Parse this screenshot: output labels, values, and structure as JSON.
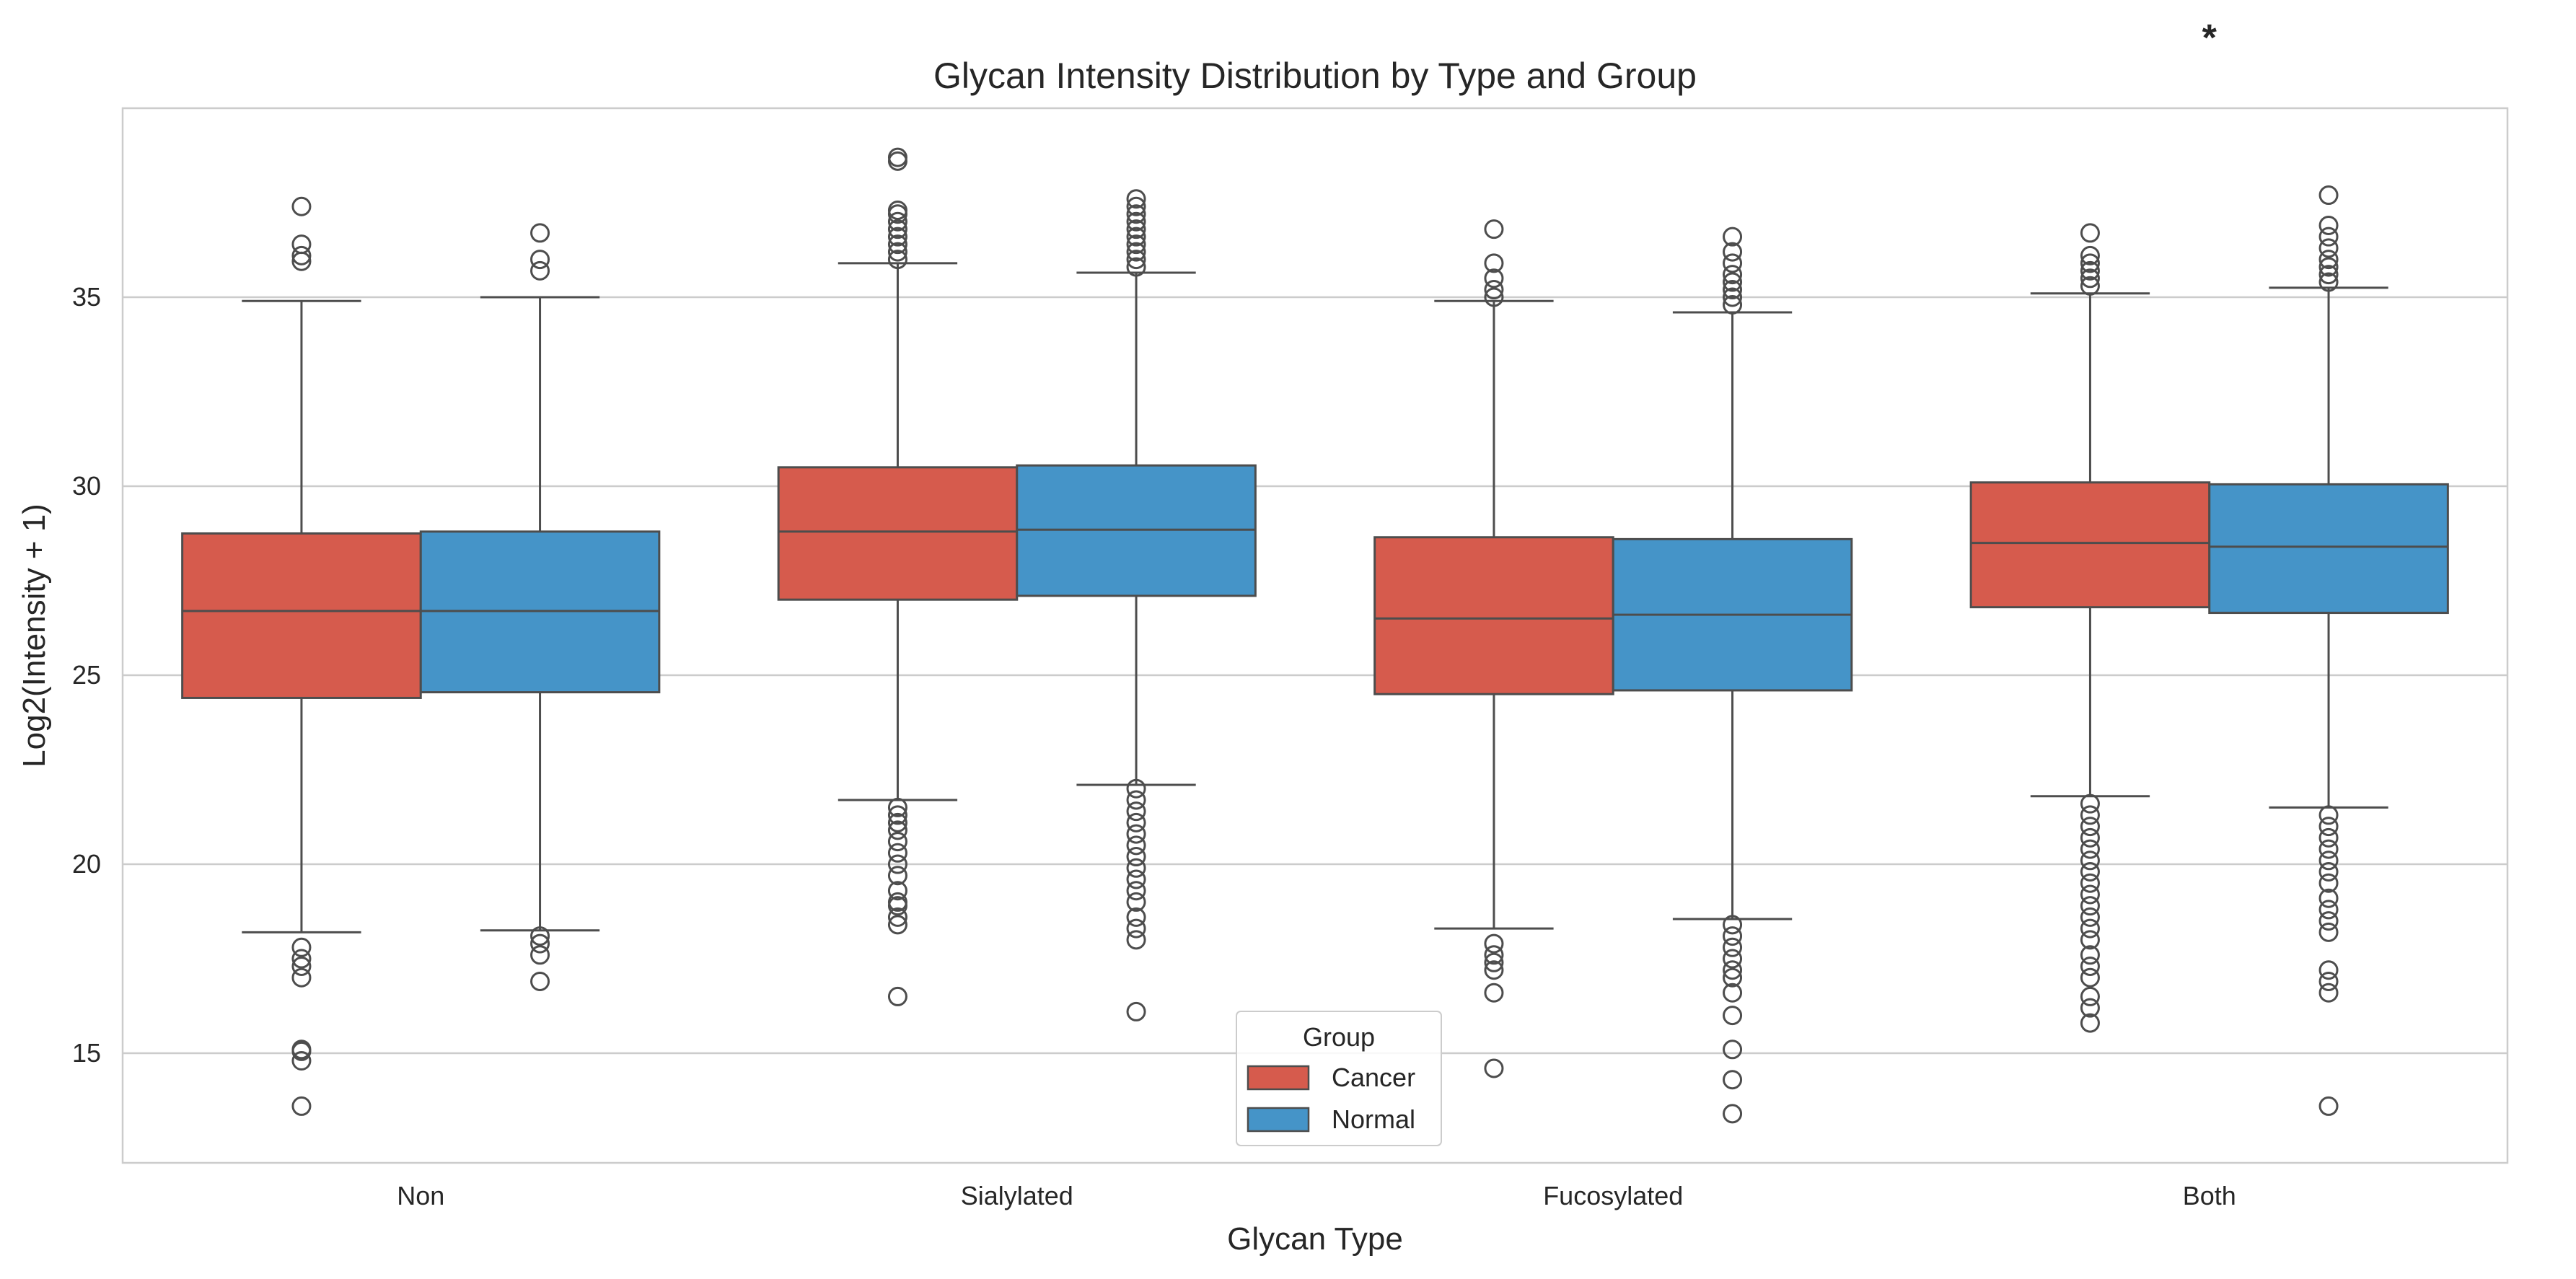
{
  "chart_data": {
    "type": "box",
    "title": "Glycan Intensity Distribution by Type and Group",
    "xlabel": "Glycan Type",
    "ylabel": "Log2(Intensity + 1)",
    "categories": [
      "Non",
      "Sialylated",
      "Fucosylated",
      "Both"
    ],
    "ylim": [
      12.1,
      40.0
    ],
    "yticks": [
      15,
      20,
      25,
      30,
      35
    ],
    "grid": true,
    "legend": {
      "title": "Group",
      "placement": "lower-center"
    },
    "annotation": {
      "text": "*",
      "category": "Both"
    },
    "series": [
      {
        "name": "Cancer",
        "color": "#d65b4d",
        "boxes": [
          {
            "whislo": 18.2,
            "q1": 24.4,
            "med": 26.7,
            "q3": 28.75,
            "whishi": 34.9,
            "outliers": [
              35.95,
              36.1,
              36.4,
              37.4,
              17.8,
              17.5,
              17.3,
              17.0,
              15.1,
              15.05,
              14.8,
              13.6
            ]
          },
          {
            "whislo": 21.7,
            "q1": 27.0,
            "med": 28.8,
            "q3": 30.5,
            "whishi": 35.9,
            "outliers": [
              36.0,
              36.2,
              36.4,
              36.6,
              36.8,
              37.0,
              37.2,
              37.3,
              38.6,
              38.7,
              21.5,
              21.3,
              21.1,
              20.9,
              20.6,
              20.3,
              20.0,
              19.7,
              19.3,
              19.0,
              18.9,
              18.6,
              18.4,
              16.5
            ]
          },
          {
            "whislo": 18.3,
            "q1": 24.5,
            "med": 26.5,
            "q3": 28.65,
            "whishi": 34.9,
            "outliers": [
              35.0,
              35.2,
              35.5,
              35.9,
              36.8,
              17.9,
              17.6,
              17.4,
              17.2,
              16.6,
              14.6
            ]
          },
          {
            "whislo": 21.8,
            "q1": 26.8,
            "med": 28.5,
            "q3": 30.1,
            "whishi": 35.1,
            "outliers": [
              35.3,
              35.5,
              35.7,
              35.9,
              36.1,
              36.7,
              21.6,
              21.3,
              21.0,
              20.7,
              20.4,
              20.1,
              19.8,
              19.5,
              19.2,
              18.9,
              18.6,
              18.3,
              18.0,
              17.6,
              17.3,
              17.0,
              16.5,
              16.2,
              15.8
            ]
          }
        ]
      },
      {
        "name": "Normal",
        "color": "#4594c8",
        "boxes": [
          {
            "whislo": 18.25,
            "q1": 24.55,
            "med": 26.7,
            "q3": 28.8,
            "whishi": 35.0,
            "outliers": [
              35.7,
              36.0,
              36.7,
              18.1,
              17.9,
              17.6,
              16.9
            ]
          },
          {
            "whislo": 22.1,
            "q1": 27.1,
            "med": 28.85,
            "q3": 30.55,
            "whishi": 35.65,
            "outliers": [
              35.8,
              36.0,
              36.2,
              36.4,
              36.6,
              36.8,
              37.0,
              37.2,
              37.4,
              37.6,
              22.0,
              21.7,
              21.4,
              21.1,
              20.8,
              20.5,
              20.2,
              19.9,
              19.6,
              19.3,
              19.0,
              18.6,
              18.3,
              18.0,
              16.1
            ]
          },
          {
            "whislo": 18.55,
            "q1": 24.6,
            "med": 26.6,
            "q3": 28.6,
            "whishi": 34.6,
            "outliers": [
              34.8,
              35.0,
              35.2,
              35.4,
              35.6,
              35.9,
              36.2,
              36.6,
              18.4,
              18.1,
              17.8,
              17.5,
              17.2,
              17.0,
              16.6,
              16.0,
              15.1,
              14.3,
              13.4
            ]
          },
          {
            "whislo": 21.5,
            "q1": 26.65,
            "med": 28.4,
            "q3": 30.05,
            "whishi": 35.25,
            "outliers": [
              35.4,
              35.6,
              35.8,
              36.0,
              36.3,
              36.6,
              36.9,
              37.7,
              21.3,
              21.0,
              20.7,
              20.4,
              20.1,
              19.8,
              19.5,
              19.1,
              18.8,
              18.5,
              18.2,
              17.2,
              16.9,
              16.6,
              13.6
            ]
          }
        ]
      }
    ]
  }
}
